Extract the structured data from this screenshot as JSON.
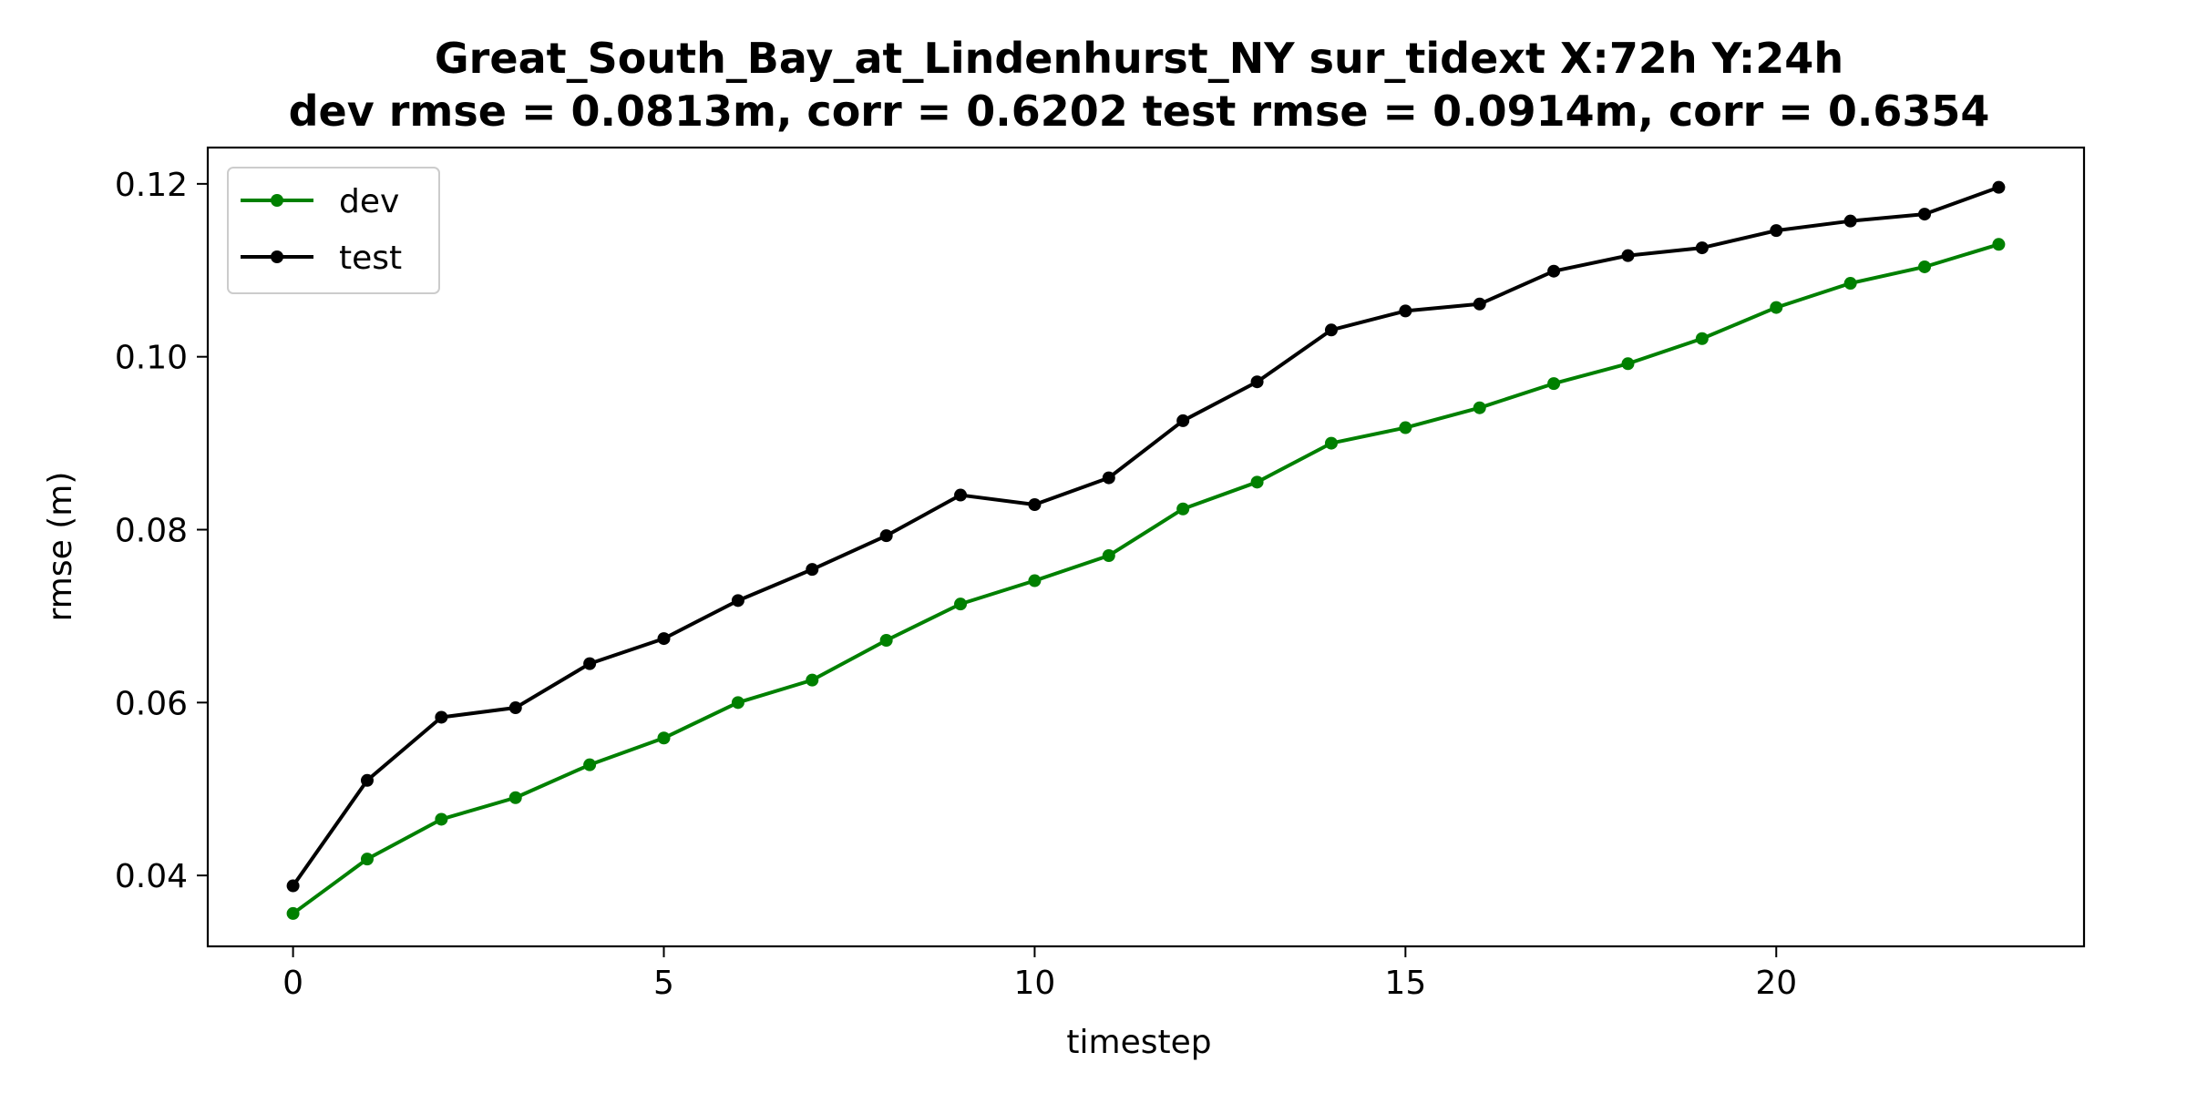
{
  "chart_data": {
    "type": "line",
    "title_line1": "Great_South_Bay_at_Lindenhurst_NY   sur_tidext   X:72h   Y:24h",
    "title_line2": "dev rmse = 0.0813m, corr = 0.6202   test rmse = 0.0914m, corr = 0.6354",
    "xlabel": "timestep",
    "ylabel": "rmse (m)",
    "xlim": [
      -1.15,
      24.15
    ],
    "ylim": [
      0.0318,
      0.1242
    ],
    "xticks": [
      0,
      5,
      10,
      15,
      20
    ],
    "yticks": [
      0.04,
      0.06,
      0.08,
      0.1,
      0.12
    ],
    "ytick_labels": [
      "0.04",
      "0.06",
      "0.08",
      "0.10",
      "0.12"
    ],
    "grid": false,
    "legend_position": "top-left",
    "x": [
      0,
      1,
      2,
      3,
      4,
      5,
      6,
      7,
      8,
      9,
      10,
      11,
      12,
      13,
      14,
      15,
      16,
      17,
      18,
      19,
      20,
      21,
      22,
      23
    ],
    "series": [
      {
        "name": "dev",
        "color": "#008000",
        "values": [
          0.0356,
          0.0419,
          0.0465,
          0.049,
          0.0528,
          0.0559,
          0.06,
          0.0626,
          0.0672,
          0.0714,
          0.0741,
          0.077,
          0.0824,
          0.0855,
          0.09,
          0.0918,
          0.0941,
          0.0969,
          0.0992,
          0.1021,
          0.1057,
          0.1085,
          0.1104,
          0.113
        ]
      },
      {
        "name": "test",
        "color": "#000000",
        "values": [
          0.0388,
          0.051,
          0.0583,
          0.0594,
          0.0645,
          0.0674,
          0.0718,
          0.0754,
          0.0793,
          0.084,
          0.0829,
          0.086,
          0.0926,
          0.0971,
          0.1031,
          0.1053,
          0.1061,
          0.1099,
          0.1117,
          0.1126,
          0.1146,
          0.1157,
          0.1165,
          0.1196
        ]
      }
    ]
  }
}
